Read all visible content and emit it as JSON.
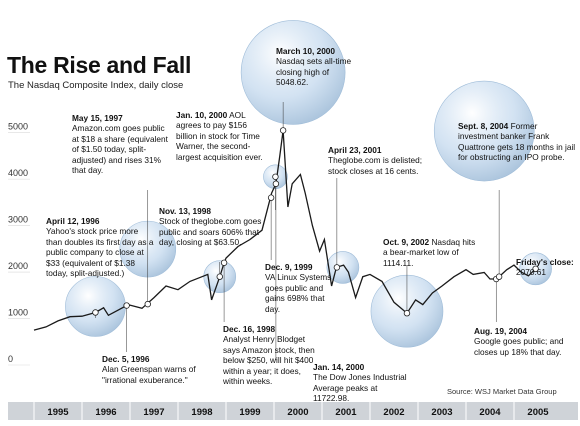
{
  "header": {
    "title": "The Rise and Fall",
    "subtitle": "The Nasdaq Composite Index, daily close"
  },
  "source": "Source: WSJ Market Data Group",
  "colors": {
    "line": "#1a1a1a",
    "axis_band": "#cfd3d8",
    "bubble": "#c4d9ee",
    "bubble_edge": "#9fbcd8",
    "gridline": "#d9d9d9"
  },
  "annotations": {
    "a1997": {
      "date": "May 15, 1997",
      "text": "Amazon.com goes public at $18 a share (equivalent of $1.50 today, split-adjusted) and rises 31% that day."
    },
    "a2000aol": {
      "date": "Jan. 10, 2000",
      "text": "AOL agrees to pay $156 billion in stock for Time Warner, the second-largest acquisition ever."
    },
    "apeak": {
      "date": "March 10, 2000",
      "text": "Nasdaq sets all-time closing high of 5048.62."
    },
    "a2004": {
      "date": "Sept. 8, 2004",
      "text": "Former investment banker Frank Quattrone gets 18 months in jail for obstructing an IPO probe."
    },
    "a2001": {
      "date": "April 23, 2001",
      "text": "Theglobe.com is delisted; stock closes at 16 cents."
    },
    "a1996yahoo": {
      "date": "April 12, 1996",
      "text": "Yahoo's stock price more than doubles its first day as a public company to close at $33 (equivalent of $1.38 today, split-adjusted.)"
    },
    "a1998": {
      "date": "Nov. 13, 1998",
      "text": "Stock of theglobe.com goes public and soars 606% that day, closing at $63.50."
    },
    "a1999": {
      "date": "Dec. 9, 1999",
      "text": "VA Linux Systems goes public and gains 698% that day."
    },
    "a2002": {
      "date": "Oct. 9, 2002",
      "text": "Nasdaq hits a bear-market low of 1114.11."
    },
    "afriday": {
      "date": "Friday's close:",
      "text": "2070.61"
    },
    "a1996dec": {
      "date": "Dec. 5, 1996",
      "text": "Alan Greenspan warns of \"irrational exuberance.\""
    },
    "a1998dec": {
      "date": "Dec. 16, 1998",
      "text": "Analyst Henry Blodget says Amazon stock, then below $250, will hit $400 within a year; it does, within weeks."
    },
    "a2000dow": {
      "date": "Jan. 14, 2000",
      "text": "The Dow Jones Industrial Average peaks at 11722.98."
    },
    "a2004aug": {
      "date": "Aug. 19, 2004",
      "text": "Google goes public; and closes up 18% that day."
    }
  },
  "chart_data": {
    "type": "line",
    "title": "The Rise and Fall",
    "subtitle": "The Nasdaq Composite Index, daily close",
    "xlabel": "",
    "ylabel": "",
    "xlim": [
      1995.0,
      2006.0
    ],
    "ylim": [
      0,
      5100
    ],
    "yticks": [
      0,
      1000,
      2000,
      3000,
      4000,
      5000
    ],
    "xticks": [
      "1995",
      "1996",
      "1997",
      "1998",
      "1999",
      "2000",
      "2001",
      "2002",
      "2003",
      "2004",
      "2005"
    ],
    "grid": false,
    "series": [
      {
        "values": [
          [
            1995.0,
            750
          ],
          [
            1995.25,
            820
          ],
          [
            1995.5,
            950
          ],
          [
            1995.75,
            1040
          ],
          [
            1996.0,
            1050
          ],
          [
            1996.28,
            1130
          ],
          [
            1996.45,
            1230
          ],
          [
            1996.55,
            1070
          ],
          [
            1996.75,
            1180
          ],
          [
            1996.93,
            1280
          ],
          [
            1997.0,
            1290
          ],
          [
            1997.25,
            1220
          ],
          [
            1997.5,
            1450
          ],
          [
            1997.75,
            1700
          ],
          [
            1998.0,
            1620
          ],
          [
            1998.25,
            1800
          ],
          [
            1998.5,
            1900
          ],
          [
            1998.62,
            1950
          ],
          [
            1998.7,
            1400
          ],
          [
            1998.87,
            1900
          ],
          [
            1998.96,
            2200
          ],
          [
            1999.0,
            2300
          ],
          [
            1999.25,
            2550
          ],
          [
            1999.5,
            2700
          ],
          [
            1999.75,
            2900
          ],
          [
            1999.95,
            3700
          ],
          [
            2000.04,
            3900
          ],
          [
            2000.12,
            4500
          ],
          [
            2000.19,
            5048
          ],
          [
            2000.29,
            3400
          ],
          [
            2000.38,
            3900
          ],
          [
            2000.55,
            4100
          ],
          [
            2000.65,
            3700
          ],
          [
            2000.8,
            3000
          ],
          [
            2000.95,
            2450
          ],
          [
            2001.05,
            2700
          ],
          [
            2001.2,
            1700
          ],
          [
            2001.3,
            2100
          ],
          [
            2001.45,
            2150
          ],
          [
            2001.55,
            2000
          ],
          [
            2001.7,
            1450
          ],
          [
            2001.85,
            1900
          ],
          [
            2002.0,
            1950
          ],
          [
            2002.25,
            1800
          ],
          [
            2002.5,
            1350
          ],
          [
            2002.77,
            1114
          ],
          [
            2002.95,
            1400
          ],
          [
            2003.1,
            1300
          ],
          [
            2003.3,
            1550
          ],
          [
            2003.5,
            1700
          ],
          [
            2003.75,
            1900
          ],
          [
            2004.0,
            2050
          ],
          [
            2004.15,
            1950
          ],
          [
            2004.38,
            1990
          ],
          [
            2004.5,
            1850
          ],
          [
            2004.63,
            1850
          ],
          [
            2004.69,
            1900
          ],
          [
            2004.85,
            2050
          ],
          [
            2005.0,
            2150
          ],
          [
            2005.15,
            2000
          ],
          [
            2005.3,
            1920
          ],
          [
            2005.45,
            2070
          ]
        ]
      }
    ],
    "highlights": [
      {
        "label": "April 12, 1996",
        "x": 1996.28,
        "y": 1130
      },
      {
        "label": "Dec. 5, 1996",
        "x": 1996.93,
        "y": 1280
      },
      {
        "label": "May 15, 1997",
        "x": 1997.37,
        "y": 1310
      },
      {
        "label": "Nov. 13, 1998",
        "x": 1998.87,
        "y": 1900
      },
      {
        "label": "Dec. 16, 1998",
        "x": 1998.96,
        "y": 2200
      },
      {
        "label": "Dec. 9, 1999",
        "x": 1999.94,
        "y": 3600
      },
      {
        "label": "Jan. 10, 2000",
        "x": 2000.03,
        "y": 4050
      },
      {
        "label": "Jan. 14, 2000",
        "x": 2000.04,
        "y": 3900
      },
      {
        "label": "March 10, 2000",
        "x": 2000.19,
        "y": 5048
      },
      {
        "label": "April 23, 2001",
        "x": 2001.31,
        "y": 2100
      },
      {
        "label": "Oct. 9, 2002",
        "x": 2002.77,
        "y": 1114
      },
      {
        "label": "Aug. 19, 2004",
        "x": 2004.63,
        "y": 1850
      },
      {
        "label": "Sept. 8, 2004",
        "x": 2004.69,
        "y": 1900
      },
      {
        "label": "Friday's close:",
        "x": 2005.45,
        "y": 2070
      }
    ]
  }
}
